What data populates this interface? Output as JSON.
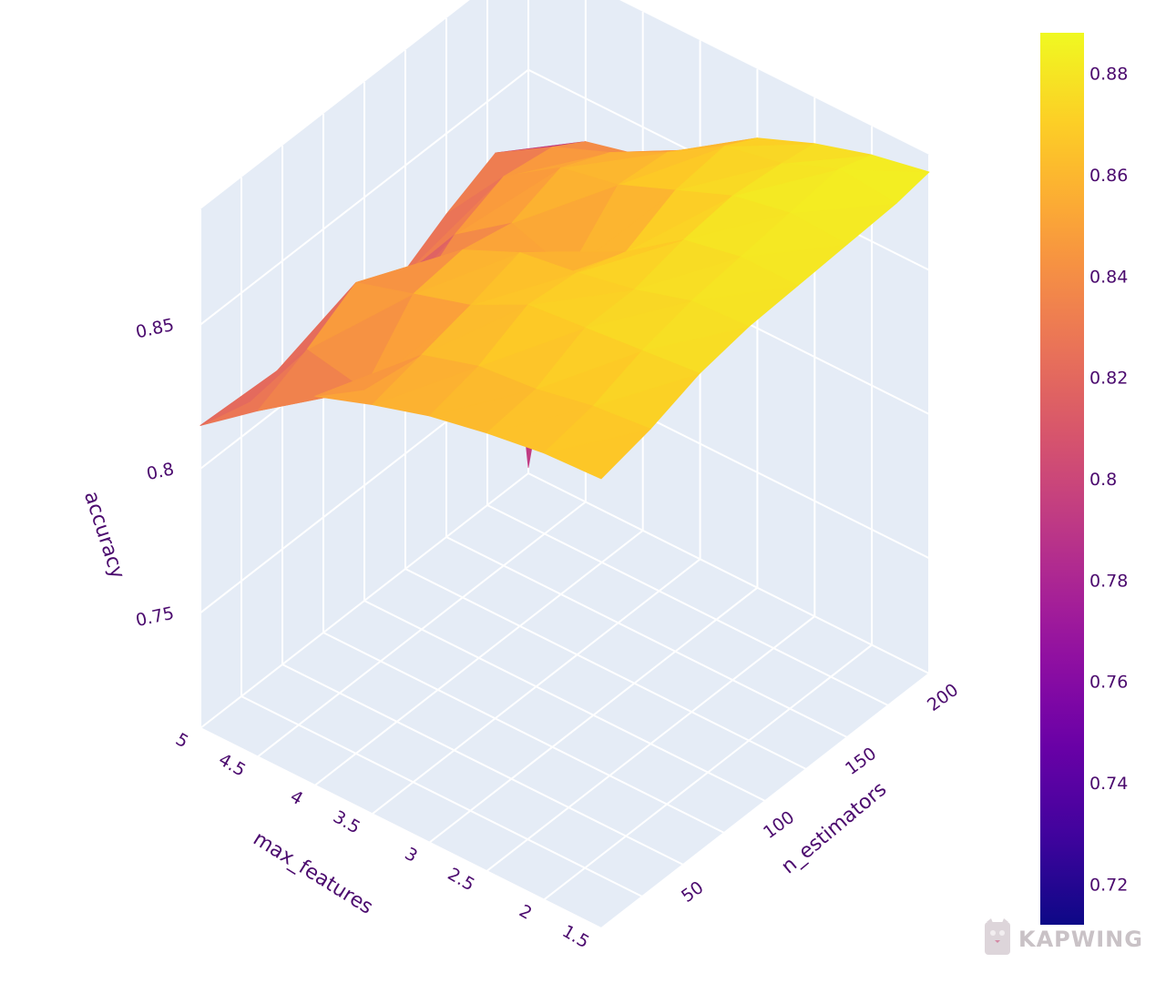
{
  "chart_data": {
    "type": "surface",
    "title": "",
    "x_axis": {
      "title": "max_features",
      "range": [
        1.5,
        5
      ],
      "ticks": [
        "5",
        "4.5",
        "4",
        "3.5",
        "3",
        "2.5",
        "2",
        "1.5"
      ]
    },
    "y_axis": {
      "title": "n_estimators",
      "range": [
        10,
        210
      ],
      "ticks": [
        "200",
        "150",
        "100",
        "50"
      ]
    },
    "z_axis": {
      "title": "accuracy",
      "range": [
        0.71,
        0.89
      ],
      "ticks": [
        "0.85",
        "0.8",
        "0.75"
      ]
    },
    "colorbar": {
      "colorscale": "plasma",
      "range": [
        0.712,
        0.888
      ],
      "ticks": [
        "0.88",
        "0.86",
        "0.84",
        "0.82",
        "0.8",
        "0.78",
        "0.76",
        "0.74",
        "0.72"
      ]
    },
    "surface": {
      "x": [
        5,
        4.5,
        4,
        3.5,
        3,
        2.5,
        2,
        1.5
      ],
      "y": [
        10,
        40,
        70,
        100,
        130,
        160,
        190,
        210
      ],
      "z": [
        [
          0.815,
          0.83,
          0.845,
          0.852,
          0.858,
          0.862,
          0.865,
          0.866
        ],
        [
          0.81,
          0.838,
          0.834,
          0.856,
          0.862,
          0.864,
          0.868,
          0.87
        ],
        [
          0.808,
          0.848,
          0.854,
          0.86,
          0.87,
          0.872,
          0.874,
          0.876
        ],
        [
          0.8,
          0.825,
          0.856,
          0.865,
          0.868,
          0.872,
          0.878,
          0.879
        ],
        [
          0.812,
          0.838,
          0.852,
          0.845,
          0.862,
          0.876,
          0.88,
          0.88
        ],
        [
          0.822,
          0.845,
          0.858,
          0.862,
          0.87,
          0.878,
          0.882,
          0.881
        ],
        [
          0.83,
          0.842,
          0.85,
          0.86,
          0.872,
          0.876,
          0.884,
          0.882
        ],
        [
          0.712,
          0.835,
          0.84,
          0.852,
          0.866,
          0.874,
          0.88,
          0.884
        ]
      ]
    }
  },
  "colors": {
    "plot_background": "#e5ecf6",
    "grid": "#ffffff",
    "axis_text": "#4b0a6e"
  },
  "watermark": {
    "text": "KAPWING",
    "icon": "kapwing-logo-icon"
  }
}
